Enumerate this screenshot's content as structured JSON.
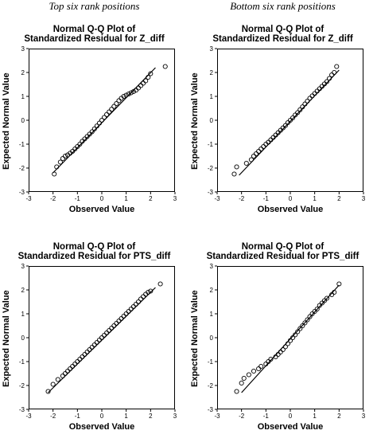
{
  "columns": [
    "Top six rank positions",
    "Bottom six rank positions"
  ],
  "chart_data": [
    {
      "type": "scatter",
      "title_line1": "Normal Q-Q Plot of",
      "title_line2": "Standardized Residual for Z_diff",
      "xlabel": "Observed Value",
      "ylabel": "Expected Normal Value",
      "xlim": [
        -3,
        3
      ],
      "ylim": [
        -3,
        3
      ],
      "xticks": [
        -3,
        -2,
        -1,
        0,
        1,
        2,
        3
      ],
      "yticks": [
        -3,
        -2,
        -1,
        0,
        1,
        2,
        3
      ],
      "reference_line": [
        [
          -2.0,
          -2.2
        ],
        [
          2.2,
          2.2
        ]
      ],
      "points": [
        [
          -1.95,
          -2.25
        ],
        [
          -1.85,
          -1.95
        ],
        [
          -1.7,
          -1.75
        ],
        [
          -1.6,
          -1.6
        ],
        [
          -1.5,
          -1.5
        ],
        [
          -1.4,
          -1.45
        ],
        [
          -1.3,
          -1.38
        ],
        [
          -1.2,
          -1.3
        ],
        [
          -1.1,
          -1.2
        ],
        [
          -1.0,
          -1.1
        ],
        [
          -0.9,
          -1.0
        ],
        [
          -0.8,
          -0.88
        ],
        [
          -0.7,
          -0.78
        ],
        [
          -0.6,
          -0.68
        ],
        [
          -0.5,
          -0.58
        ],
        [
          -0.4,
          -0.48
        ],
        [
          -0.3,
          -0.36
        ],
        [
          -0.2,
          -0.24
        ],
        [
          -0.1,
          -0.12
        ],
        [
          0.0,
          0.0
        ],
        [
          0.1,
          0.12
        ],
        [
          0.2,
          0.24
        ],
        [
          0.3,
          0.35
        ],
        [
          0.4,
          0.46
        ],
        [
          0.5,
          0.58
        ],
        [
          0.6,
          0.7
        ],
        [
          0.7,
          0.82
        ],
        [
          0.8,
          0.92
        ],
        [
          0.9,
          1.0
        ],
        [
          1.0,
          1.05
        ],
        [
          1.1,
          1.1
        ],
        [
          1.2,
          1.15
        ],
        [
          1.3,
          1.2
        ],
        [
          1.4,
          1.26
        ],
        [
          1.5,
          1.35
        ],
        [
          1.6,
          1.45
        ],
        [
          1.7,
          1.55
        ],
        [
          1.8,
          1.65
        ],
        [
          1.9,
          1.8
        ],
        [
          2.0,
          1.95
        ],
        [
          2.6,
          2.25
        ]
      ]
    },
    {
      "type": "scatter",
      "title_line1": "Normal Q-Q Plot of",
      "title_line2": "Standardized Residual for Z_diff",
      "xlabel": "Observed Value",
      "ylabel": "Expected Normal Value",
      "xlim": [
        -3,
        3
      ],
      "ylim": [
        -3,
        3
      ],
      "xticks": [
        -3,
        -2,
        -1,
        0,
        1,
        2,
        3
      ],
      "yticks": [
        -3,
        -2,
        -1,
        0,
        1,
        2,
        3
      ],
      "reference_line": [
        [
          -2.1,
          -2.3
        ],
        [
          2.0,
          2.1
        ]
      ],
      "points": [
        [
          -2.3,
          -2.25
        ],
        [
          -2.2,
          -1.95
        ],
        [
          -1.8,
          -1.8
        ],
        [
          -1.6,
          -1.65
        ],
        [
          -1.5,
          -1.5
        ],
        [
          -1.4,
          -1.4
        ],
        [
          -1.3,
          -1.3
        ],
        [
          -1.2,
          -1.2
        ],
        [
          -1.1,
          -1.1
        ],
        [
          -1.0,
          -1.0
        ],
        [
          -0.9,
          -0.92
        ],
        [
          -0.8,
          -0.82
        ],
        [
          -0.7,
          -0.72
        ],
        [
          -0.6,
          -0.62
        ],
        [
          -0.5,
          -0.52
        ],
        [
          -0.4,
          -0.42
        ],
        [
          -0.3,
          -0.32
        ],
        [
          -0.2,
          -0.22
        ],
        [
          -0.1,
          -0.1
        ],
        [
          0.0,
          0.0
        ],
        [
          0.1,
          0.1
        ],
        [
          0.2,
          0.22
        ],
        [
          0.3,
          0.32
        ],
        [
          0.4,
          0.44
        ],
        [
          0.5,
          0.56
        ],
        [
          0.6,
          0.68
        ],
        [
          0.7,
          0.8
        ],
        [
          0.8,
          0.92
        ],
        [
          0.9,
          1.02
        ],
        [
          1.0,
          1.12
        ],
        [
          1.1,
          1.22
        ],
        [
          1.2,
          1.32
        ],
        [
          1.3,
          1.42
        ],
        [
          1.4,
          1.52
        ],
        [
          1.5,
          1.62
        ],
        [
          1.6,
          1.75
        ],
        [
          1.7,
          1.9
        ],
        [
          1.8,
          2.0
        ],
        [
          1.9,
          2.25
        ]
      ]
    },
    {
      "type": "scatter",
      "title_line1": "Normal Q-Q Plot of",
      "title_line2": "Standardized Residual for PTS_diff",
      "xlabel": "Observed Value",
      "ylabel": "Expected Normal Value",
      "xlim": [
        -3,
        3
      ],
      "ylim": [
        -3,
        3
      ],
      "xticks": [
        -3,
        -2,
        -1,
        0,
        1,
        2,
        3
      ],
      "yticks": [
        -3,
        -2,
        -1,
        0,
        1,
        2,
        3
      ],
      "reference_line": [
        [
          -2.2,
          -2.3
        ],
        [
          2.2,
          2.1
        ]
      ],
      "points": [
        [
          -2.2,
          -2.25
        ],
        [
          -2.0,
          -1.95
        ],
        [
          -1.8,
          -1.75
        ],
        [
          -1.6,
          -1.6
        ],
        [
          -1.5,
          -1.5
        ],
        [
          -1.4,
          -1.4
        ],
        [
          -1.3,
          -1.3
        ],
        [
          -1.2,
          -1.2
        ],
        [
          -1.1,
          -1.1
        ],
        [
          -1.0,
          -1.0
        ],
        [
          -0.9,
          -0.9
        ],
        [
          -0.8,
          -0.8
        ],
        [
          -0.7,
          -0.7
        ],
        [
          -0.6,
          -0.6
        ],
        [
          -0.5,
          -0.5
        ],
        [
          -0.4,
          -0.4
        ],
        [
          -0.3,
          -0.3
        ],
        [
          -0.2,
          -0.2
        ],
        [
          -0.1,
          -0.1
        ],
        [
          0.0,
          0.0
        ],
        [
          0.1,
          0.1
        ],
        [
          0.2,
          0.2
        ],
        [
          0.3,
          0.3
        ],
        [
          0.4,
          0.4
        ],
        [
          0.5,
          0.5
        ],
        [
          0.6,
          0.6
        ],
        [
          0.7,
          0.7
        ],
        [
          0.8,
          0.8
        ],
        [
          0.9,
          0.9
        ],
        [
          1.0,
          1.0
        ],
        [
          1.1,
          1.1
        ],
        [
          1.2,
          1.2
        ],
        [
          1.3,
          1.3
        ],
        [
          1.4,
          1.4
        ],
        [
          1.5,
          1.5
        ],
        [
          1.6,
          1.62
        ],
        [
          1.7,
          1.72
        ],
        [
          1.8,
          1.82
        ],
        [
          1.9,
          1.9
        ],
        [
          2.0,
          1.95
        ],
        [
          2.4,
          2.25
        ]
      ]
    },
    {
      "type": "scatter",
      "title_line1": "Normal Q-Q Plot of",
      "title_line2": "Standardized Residual for PTS_diff",
      "xlabel": "Observed Value",
      "ylabel": "Expected Normal Value",
      "xlim": [
        -3,
        3
      ],
      "ylim": [
        -3,
        3
      ],
      "xticks": [
        -3,
        -2,
        -1,
        0,
        1,
        2,
        3
      ],
      "yticks": [
        -3,
        -2,
        -1,
        0,
        1,
        2,
        3
      ],
      "reference_line": [
        [
          -2.0,
          -2.3
        ],
        [
          2.0,
          2.2
        ]
      ],
      "points": [
        [
          -2.2,
          -2.25
        ],
        [
          -2.0,
          -1.9
        ],
        [
          -1.9,
          -1.7
        ],
        [
          -1.7,
          -1.55
        ],
        [
          -1.5,
          -1.4
        ],
        [
          -1.3,
          -1.3
        ],
        [
          -1.2,
          -1.2
        ],
        [
          -1.0,
          -1.1
        ],
        [
          -0.9,
          -1.0
        ],
        [
          -0.8,
          -0.9
        ],
        [
          -0.6,
          -0.8
        ],
        [
          -0.5,
          -0.7
        ],
        [
          -0.4,
          -0.6
        ],
        [
          -0.3,
          -0.5
        ],
        [
          -0.2,
          -0.38
        ],
        [
          -0.1,
          -0.25
        ],
        [
          0.0,
          -0.12
        ],
        [
          0.1,
          0.0
        ],
        [
          0.2,
          0.12
        ],
        [
          0.3,
          0.25
        ],
        [
          0.4,
          0.38
        ],
        [
          0.5,
          0.5
        ],
        [
          0.6,
          0.62
        ],
        [
          0.7,
          0.75
        ],
        [
          0.8,
          0.88
        ],
        [
          0.9,
          1.0
        ],
        [
          1.0,
          1.1
        ],
        [
          1.1,
          1.2
        ],
        [
          1.2,
          1.35
        ],
        [
          1.3,
          1.45
        ],
        [
          1.4,
          1.55
        ],
        [
          1.5,
          1.65
        ],
        [
          1.7,
          1.8
        ],
        [
          1.8,
          1.9
        ],
        [
          2.0,
          2.25
        ]
      ]
    }
  ]
}
